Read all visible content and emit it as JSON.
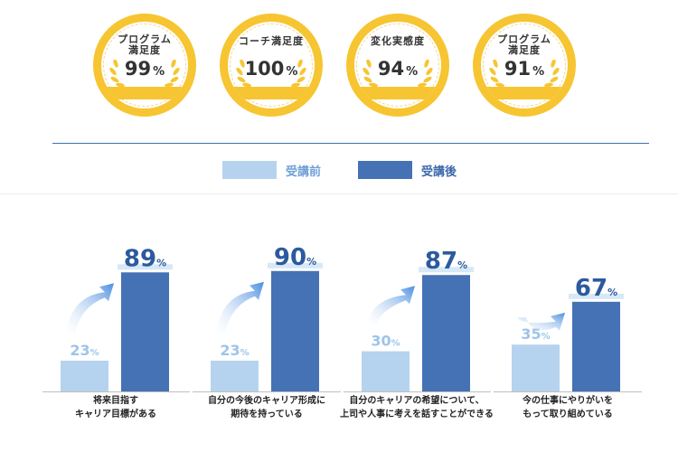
{
  "badges": [
    {
      "title": "プログラム\n満足度",
      "value": "99",
      "unit": "%"
    },
    {
      "title": "コーチ満足度",
      "value": "100",
      "unit": "%"
    },
    {
      "title": "変化実感度",
      "value": "94",
      "unit": "%"
    },
    {
      "title": "プログラム\n満足度",
      "value": "91",
      "unit": "%"
    }
  ],
  "legend": {
    "before": "受講前",
    "after": "受講後"
  },
  "colors": {
    "before": "#b5d3ee",
    "after": "#4472b4",
    "gold": "#f6c531",
    "arrow": "#5b9be0"
  },
  "chart_data": {
    "type": "bar",
    "categories": [
      "将来目指す\nキャリア目標がある",
      "自分の今後のキャリア形成に\n期待を持っている",
      "自分のキャリアの希望について、\n上司や人事に考えを話すことができる",
      "今の仕事にやりがいを\nもって取り組めている"
    ],
    "series": [
      {
        "name": "受講前",
        "values": [
          23,
          23,
          30,
          35
        ]
      },
      {
        "name": "受講後",
        "values": [
          89,
          90,
          87,
          67
        ]
      }
    ],
    "unit": "%",
    "ylim": [
      0,
      100
    ]
  }
}
